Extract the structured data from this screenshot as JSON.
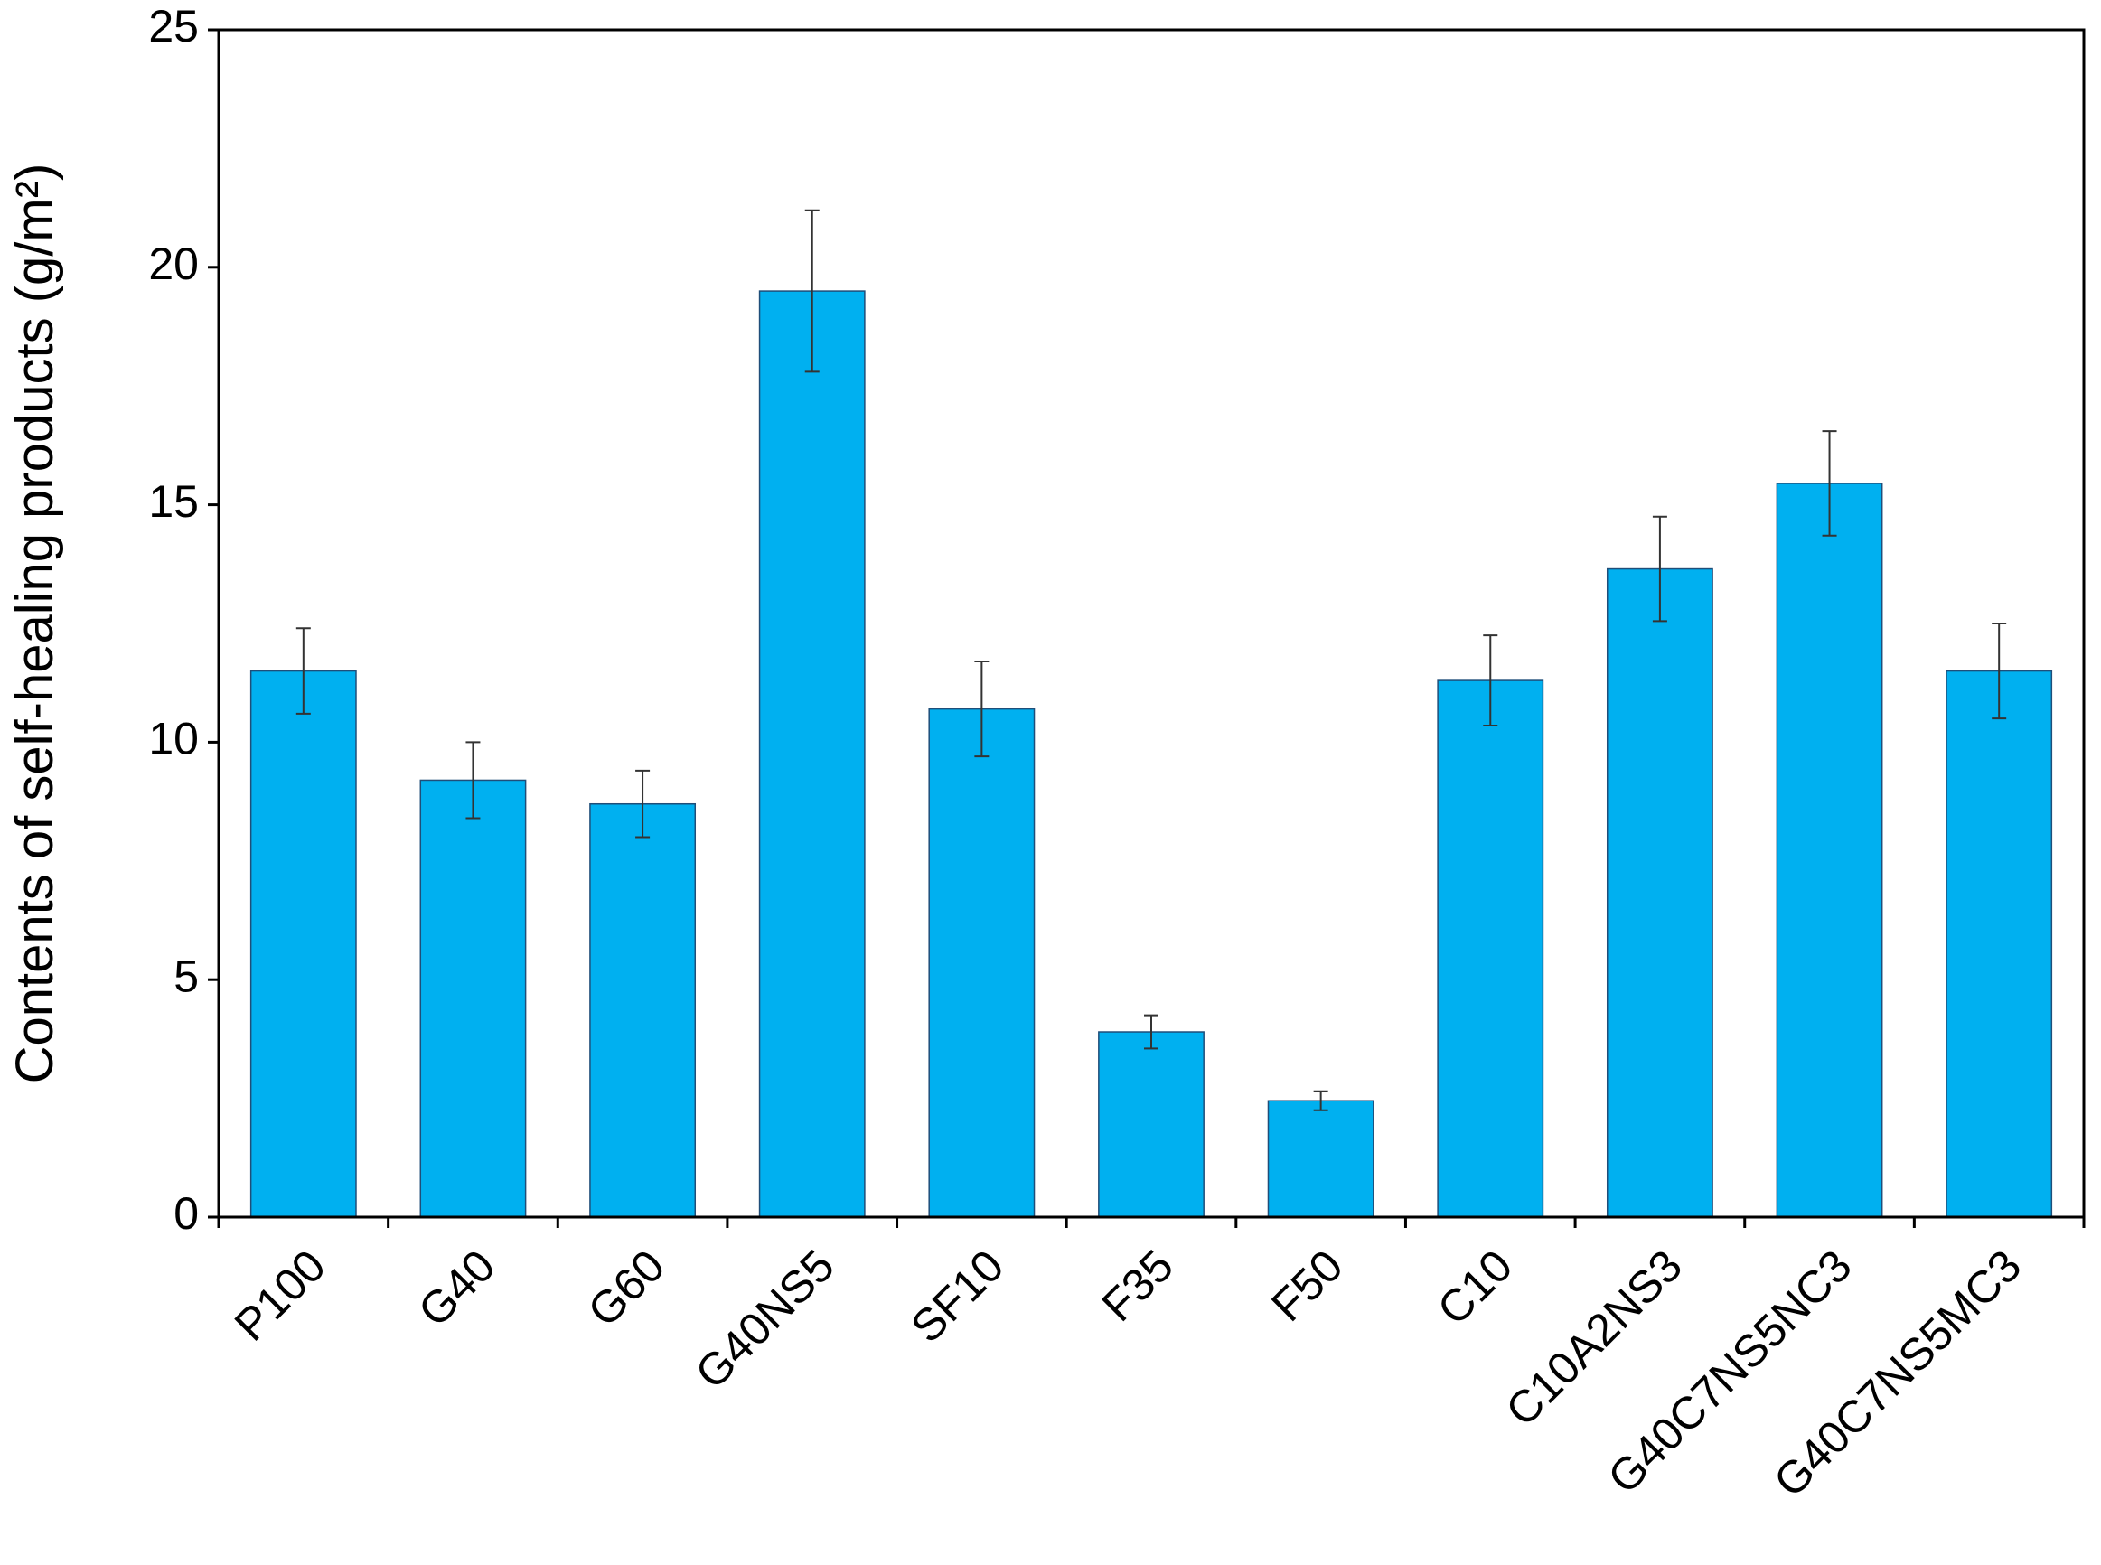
{
  "chart_data": {
    "type": "bar",
    "y_label": "Contents of self-healing products (g/m²)",
    "categories": [
      "P100",
      "G40",
      "G60",
      "G40NS5",
      "SF10",
      "F35",
      "F50",
      "C10",
      "C10A2NS3",
      "G40C7NS5NC3",
      "G40C7NS5MC3"
    ],
    "values": [
      11.5,
      9.2,
      8.7,
      19.5,
      10.7,
      3.9,
      2.45,
      11.3,
      13.65,
      15.45,
      11.5
    ],
    "errors": [
      0.9,
      0.8,
      0.7,
      1.7,
      1.0,
      0.35,
      0.2,
      0.95,
      1.1,
      1.1,
      1.0
    ],
    "color": "#00b0f0",
    "ylim": [
      0,
      25
    ],
    "yticks": [
      0,
      5,
      10,
      15,
      20,
      25
    ],
    "grid": false
  }
}
